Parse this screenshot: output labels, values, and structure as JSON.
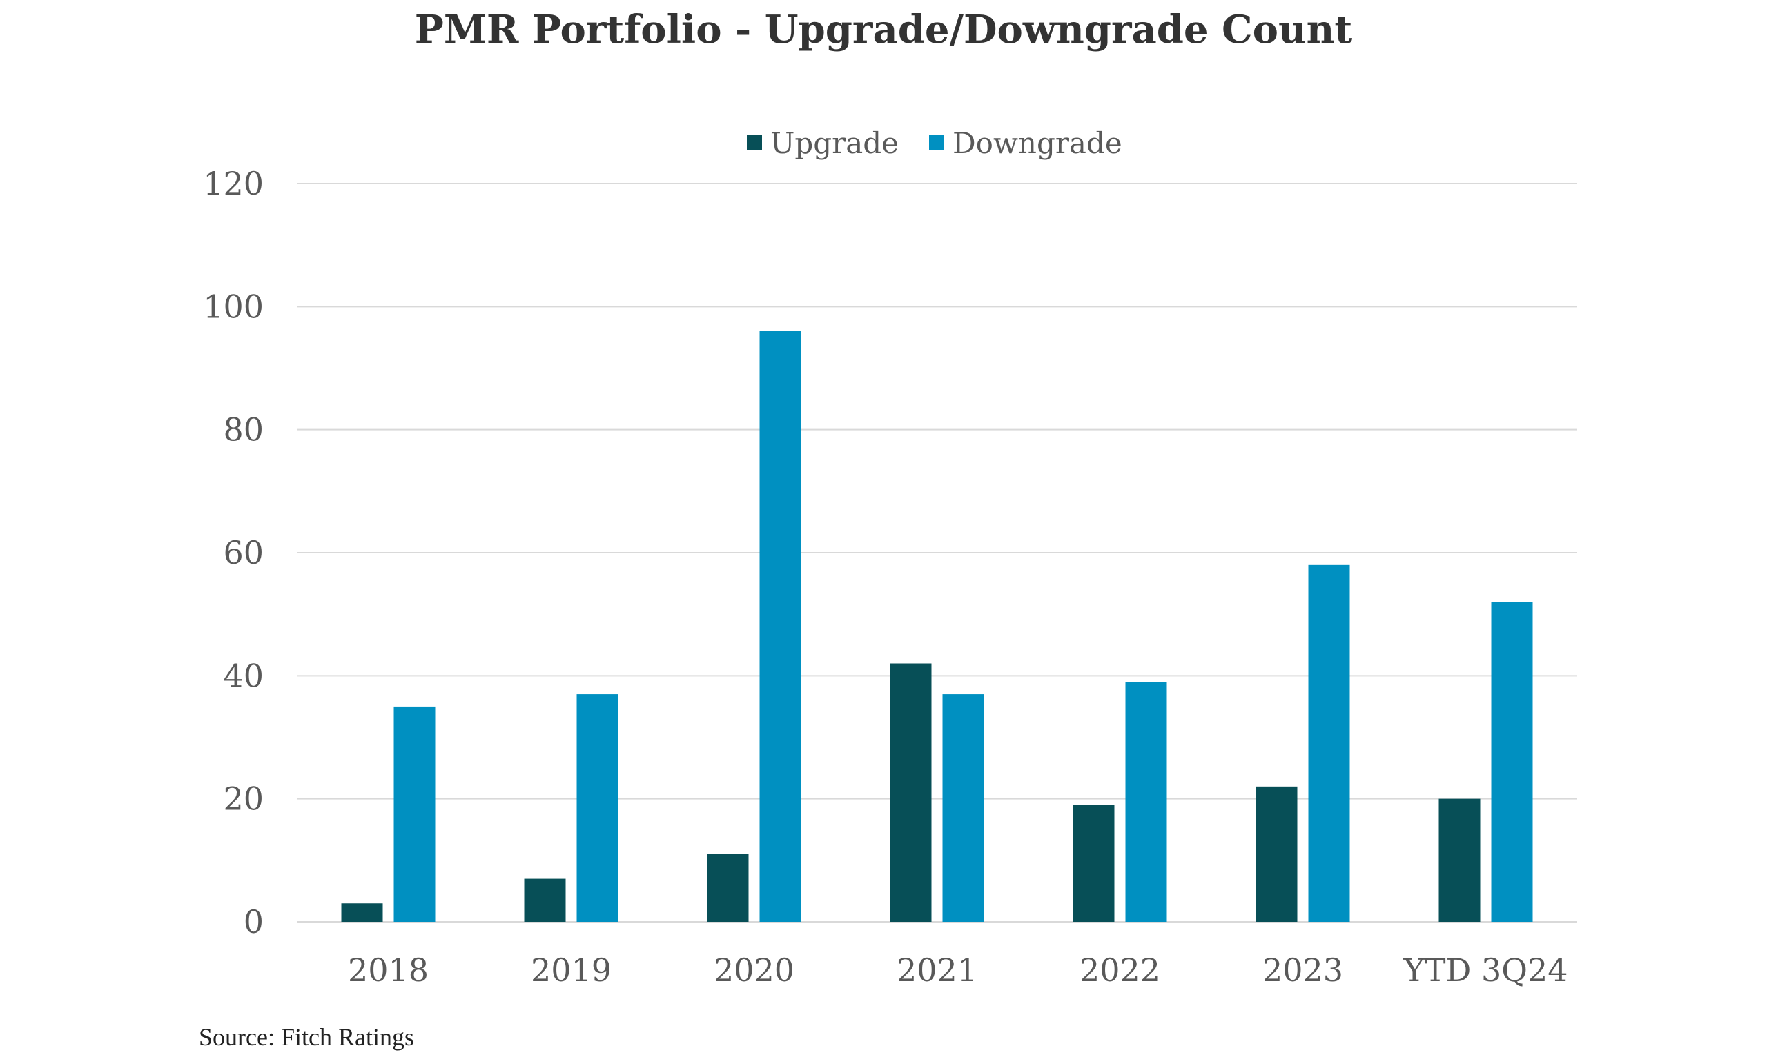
{
  "chart_data": {
    "type": "bar",
    "title": "PMR Portfolio - Upgrade/Downgrade Count",
    "categories": [
      "2018",
      "2019",
      "2020",
      "2021",
      "2022",
      "2023",
      "YTD 3Q24"
    ],
    "series": [
      {
        "name": "Upgrade",
        "color": "#074F57",
        "values": [
          3,
          7,
          11,
          42,
          19,
          22,
          20
        ]
      },
      {
        "name": "Downgrade",
        "color": "#0090C1",
        "values": [
          35,
          37,
          96,
          37,
          39,
          58,
          52
        ]
      }
    ],
    "ylim": [
      0,
      120
    ],
    "yticks": [
      0,
      20,
      40,
      60,
      80,
      100,
      120
    ],
    "ytick_labels": [
      "0",
      "20",
      "40",
      "60",
      "80",
      "100",
      "120"
    ],
    "grid": true,
    "legend_position": "top-center",
    "xlabel": "",
    "ylabel": ""
  },
  "source": "Source: Fitch Ratings"
}
